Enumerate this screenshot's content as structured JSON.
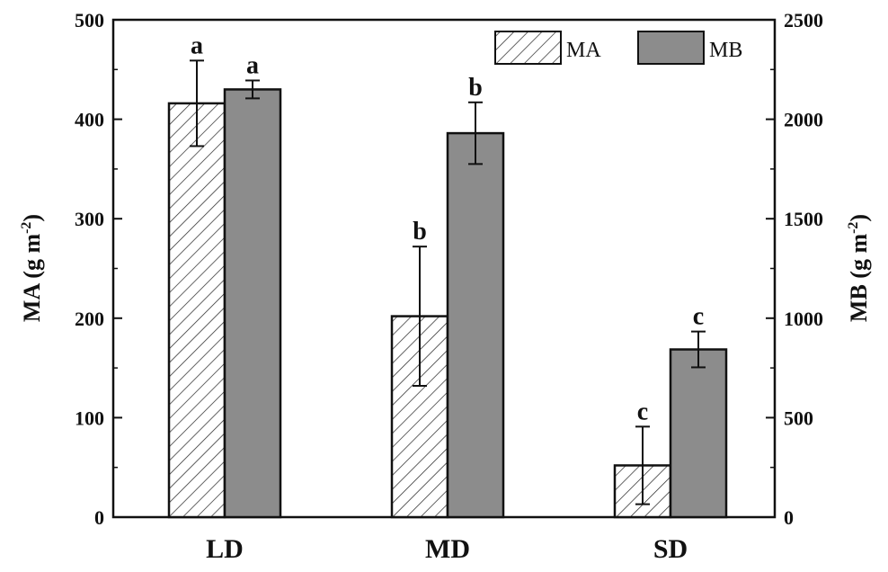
{
  "chart_data": {
    "type": "bar",
    "categories": [
      "LD",
      "MD",
      "SD"
    ],
    "series": [
      {
        "name": "MA",
        "axis": "left",
        "values": [
          416,
          202,
          52
        ],
        "errors": [
          43,
          70,
          39
        ],
        "letters": [
          "a",
          "b",
          "c"
        ],
        "fill": "hatched"
      },
      {
        "name": "MB",
        "axis": "right",
        "values": [
          2150,
          1930,
          843
        ],
        "errors": [
          45,
          155,
          90
        ],
        "letters": [
          "a",
          "b",
          "c"
        ],
        "fill": "#8c8c8c"
      }
    ],
    "ylabel": "MA (g m",
    "ylabel_sup": "-2",
    "ylabel_suffix": ")",
    "y2label": "MB (g m",
    "y2label_sup": "-2",
    "y2label_suffix": ")",
    "ylim": [
      0,
      500
    ],
    "y2lim": [
      0,
      2500
    ],
    "yticks": [
      0,
      100,
      200,
      300,
      400,
      500
    ],
    "y2ticks": [
      0,
      500,
      1000,
      1500,
      2000,
      2500
    ],
    "legend": "top-right",
    "grid": false,
    "colors": {
      "MB": "#8c8c8c",
      "axis": "#111111"
    }
  }
}
